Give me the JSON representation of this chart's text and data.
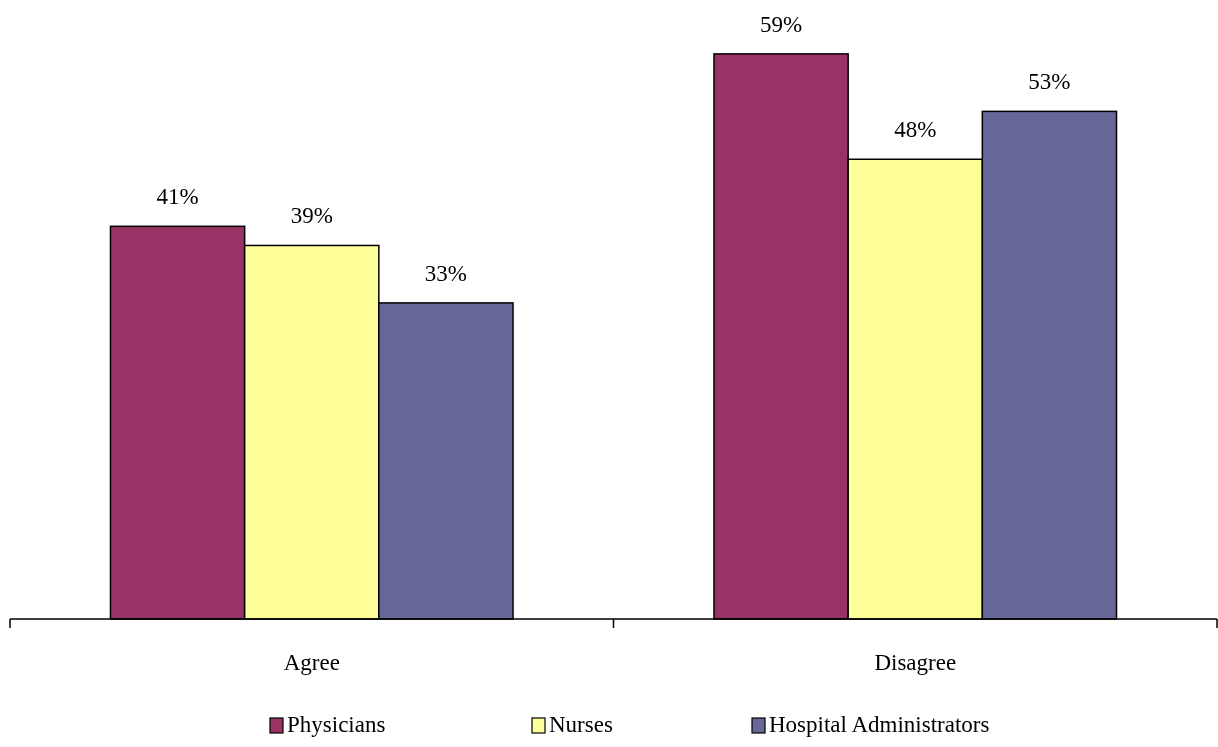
{
  "chart_data": {
    "type": "bar",
    "categories": [
      "Agree",
      "Disagree"
    ],
    "series": [
      {
        "name": "Physicians",
        "color": "#993366",
        "values": [
          41,
          59
        ],
        "value_labels": [
          "41%",
          "59%"
        ]
      },
      {
        "name": "Nurses",
        "color": "#ffff99",
        "values": [
          39,
          48
        ],
        "value_labels": [
          "39%",
          "48%"
        ]
      },
      {
        "name": "Hospital Administrators",
        "color": "#666699",
        "values": [
          33,
          53
        ],
        "value_labels": [
          "33%",
          "53%"
        ]
      }
    ],
    "legend": "bottom"
  }
}
